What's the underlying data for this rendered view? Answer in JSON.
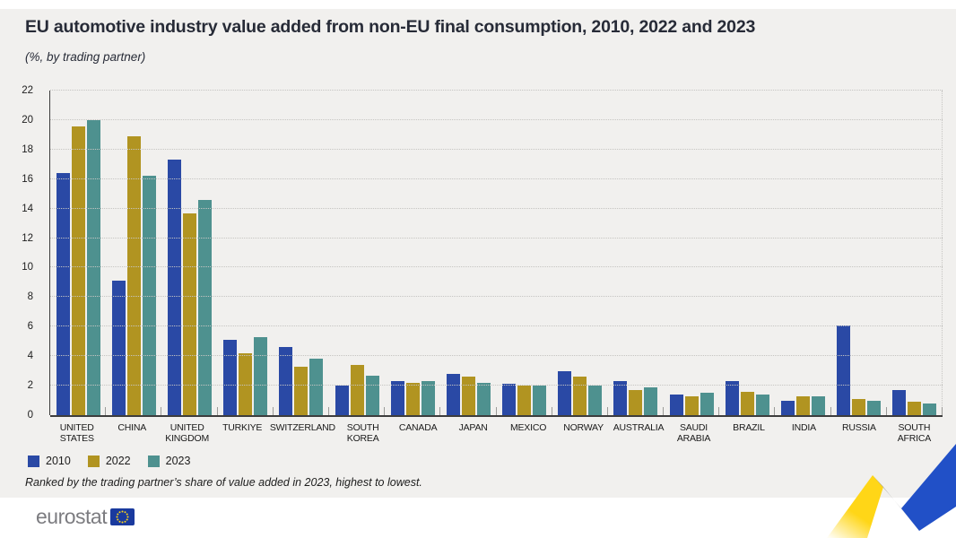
{
  "title": "EU automotive industry value added from non-EU final consumption, 2010, 2022 and 2023",
  "subtitle": "(%, by trading partner)",
  "footnote": "Ranked by the trading partner’s share of value added in 2023, highest to lowest.",
  "logo": {
    "text": "eurostat",
    "flag": "eu-flag-icon"
  },
  "colors": {
    "background": "#F1F0EE",
    "bar_2010": "#2A49A5",
    "bar_2022": "#B19421",
    "bar_2023": "#4E918F",
    "axis": "#3d3d3d",
    "grid": "#c6c5c2",
    "title_text": "#272B37",
    "eu_flag_blue": "#1A3A9E",
    "ribbon_yellow": "#FFD617",
    "ribbon_gray": "#C2C2C2",
    "ribbon_blue": "#2150C7",
    "logo_gray": "#7c7c80"
  },
  "chart_data": {
    "type": "bar",
    "title": "EU automotive industry value added from non-EU final consumption, 2010, 2022 and 2023",
    "subtitle": "(%, by trading partner)",
    "categories": [
      "UNITED\nSTATES",
      "CHINA",
      "UNITED\nKINGDOM",
      "TURKIYE",
      "SWITZERLAND",
      "SOUTH\nKOREA",
      "CANADA",
      "JAPAN",
      "MEXICO",
      "NORWAY",
      "AUSTRALIA",
      "SAUDI\nARABIA",
      "BRAZIL",
      "INDIA",
      "RUSSIA",
      "SOUTH\nAFRICA"
    ],
    "series": [
      {
        "name": "2010",
        "color": "#2A49A5",
        "values": [
          16.4,
          9.1,
          17.3,
          5.1,
          4.6,
          2.0,
          2.3,
          2.8,
          2.1,
          3.0,
          2.3,
          1.4,
          2.3,
          1.0,
          6.1,
          1.7
        ]
      },
      {
        "name": "2022",
        "color": "#B19421",
        "values": [
          19.6,
          18.9,
          13.7,
          4.2,
          3.3,
          3.4,
          2.2,
          2.6,
          2.0,
          2.6,
          1.7,
          1.3,
          1.6,
          1.3,
          1.1,
          0.9
        ]
      },
      {
        "name": "2023",
        "color": "#4E918F",
        "values": [
          20.0,
          16.2,
          14.6,
          5.3,
          3.8,
          2.7,
          2.3,
          2.2,
          2.0,
          2.0,
          1.9,
          1.5,
          1.4,
          1.3,
          1.0,
          0.8
        ]
      }
    ],
    "xlabel": "",
    "ylabel": "%",
    "ylim": [
      0,
      22
    ],
    "yticks": [
      0,
      2,
      4,
      6,
      8,
      10,
      12,
      14,
      16,
      18,
      20,
      22
    ],
    "grid": "horizontal-dotted",
    "legend_position": "bottom-left"
  }
}
